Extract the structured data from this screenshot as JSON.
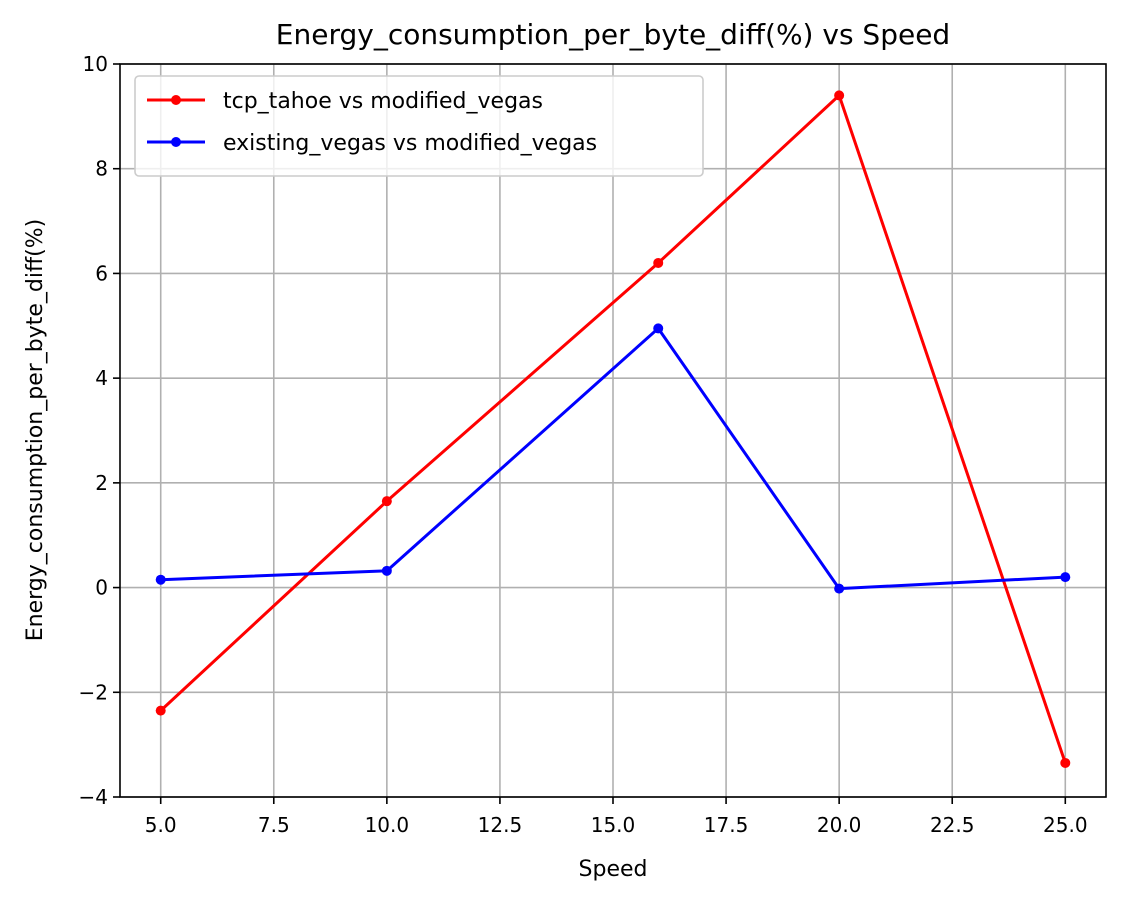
{
  "chart_data": {
    "type": "line",
    "title": "Energy_consumption_per_byte_diff(%) vs Speed",
    "xlabel": "Speed",
    "ylabel": "Energy_consumption_per_byte_diff(%)",
    "xlim": [
      4.1,
      25.9
    ],
    "ylim": [
      -4,
      10
    ],
    "xticks": [
      5.0,
      7.5,
      10.0,
      12.5,
      15.0,
      17.5,
      20.0,
      22.5,
      25.0
    ],
    "xtick_labels": [
      "5.0",
      "7.5",
      "10.0",
      "12.5",
      "15.0",
      "17.5",
      "20.0",
      "22.5",
      "25.0"
    ],
    "yticks": [
      -4,
      -2,
      0,
      2,
      4,
      6,
      8,
      10
    ],
    "ytick_labels": [
      "−4",
      "−2",
      "0",
      "2",
      "4",
      "6",
      "8",
      "10"
    ],
    "grid": true,
    "legend_position": "upper-left",
    "x": [
      5,
      10,
      16,
      20,
      25
    ],
    "series": [
      {
        "name": "tcp_tahoe vs modified_vegas",
        "color": "#ff0000",
        "values": [
          -2.35,
          1.65,
          6.2,
          9.4,
          -3.35
        ]
      },
      {
        "name": "existing_vegas vs modified_vegas",
        "color": "#0000ff",
        "values": [
          0.15,
          0.32,
          4.95,
          -0.02,
          0.2
        ]
      }
    ]
  }
}
